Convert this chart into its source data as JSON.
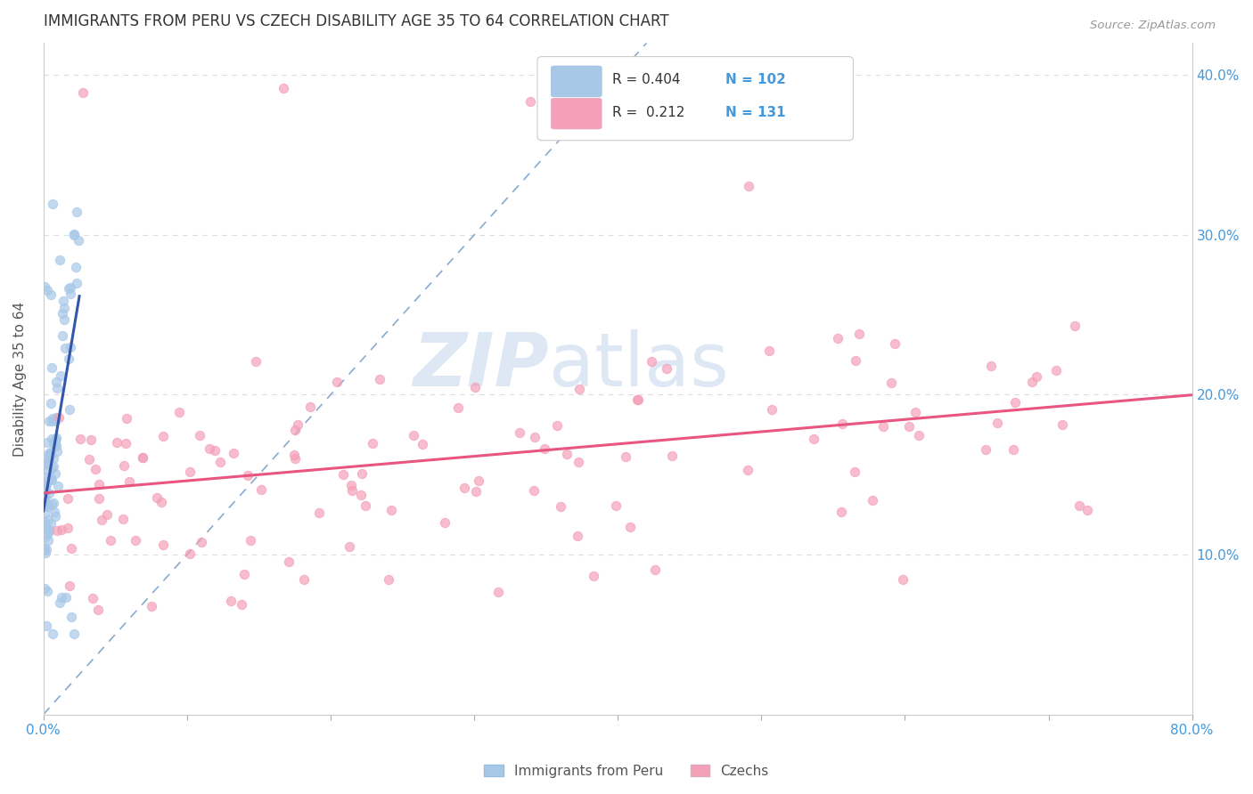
{
  "title": "IMMIGRANTS FROM PERU VS CZECH DISABILITY AGE 35 TO 64 CORRELATION CHART",
  "source": "Source: ZipAtlas.com",
  "ylabel": "Disability Age 35 to 64",
  "xlim": [
    0.0,
    0.8
  ],
  "ylim": [
    0.0,
    0.42
  ],
  "x_tick_positions": [
    0.0,
    0.1,
    0.2,
    0.3,
    0.4,
    0.5,
    0.6,
    0.7,
    0.8
  ],
  "x_tick_labels": [
    "0.0%",
    "",
    "",
    "",
    "",
    "",
    "",
    "",
    "80.0%"
  ],
  "y_tick_positions": [
    0.0,
    0.1,
    0.2,
    0.3,
    0.4
  ],
  "y_tick_labels": [
    "",
    "10.0%",
    "20.0%",
    "30.0%",
    "40.0%"
  ],
  "legend_r_blue": "0.404",
  "legend_n_blue": "102",
  "legend_r_pink": "0.212",
  "legend_n_pink": "131",
  "color_blue": "#a8c8e8",
  "color_pink": "#f4a0b8",
  "line_blue": "#3355aa",
  "line_pink": "#e85580",
  "line_dashed": "#88aacc",
  "watermark_zip": "ZIP",
  "watermark_atlas": "atlas",
  "watermark_color": "#dde8f4",
  "label_peru": "Immigrants from Peru",
  "label_czech": "Czechs",
  "title_fontsize": 12,
  "axis_label_color": "#333333",
  "tick_color_x": "#4499dd",
  "tick_color_y": "#4499dd",
  "source_color": "#999999",
  "grid_color": "#dddddd"
}
